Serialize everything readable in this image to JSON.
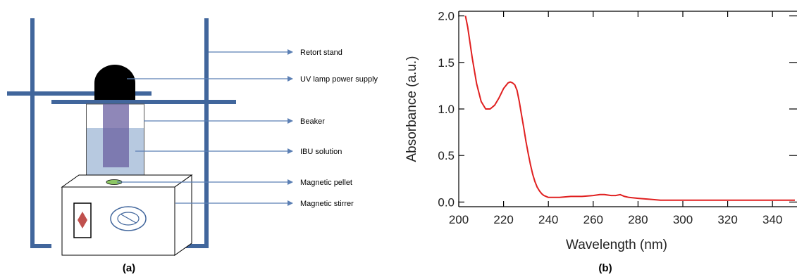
{
  "panel_a": {
    "caption": "(a)",
    "labels": {
      "retort_stand": "Retort stand",
      "uv_lamp": "UV lamp power supply",
      "beaker": "Beaker",
      "ibu_solution": "IBU solution",
      "magnetic_pellet": "Magnetic pellet",
      "magnetic_stirrer": "Magnetic stirrer"
    },
    "colors": {
      "stand": "#41669c",
      "lamp": "#000000",
      "solution": "#b7c9e0",
      "lamp_rod": "#6a5fa0",
      "arrow": "#5b7fb4",
      "pellet": "#8dc765",
      "knob": "#c0504d"
    }
  },
  "panel_b": {
    "caption": "(b)"
  },
  "chart_data": {
    "type": "line",
    "xlabel": "Wavelength (nm)",
    "ylabel": "Absorbance (a.u.)",
    "xlim": [
      200,
      350
    ],
    "ylim": [
      -0.05,
      2.05
    ],
    "xticks": [
      200,
      220,
      240,
      260,
      280,
      300,
      320,
      340
    ],
    "yticks": [
      0.0,
      0.5,
      1.0,
      1.5,
      2.0
    ],
    "xtick_labels": [
      "200",
      "220",
      "240",
      "260",
      "280",
      "300",
      "320",
      "340"
    ],
    "ytick_labels": [
      "0.0",
      "0.5",
      "1.0",
      "1.5",
      "2.0"
    ],
    "grid": false,
    "line_color": "#e02020",
    "series": [
      {
        "x": [
          203,
          204,
          206,
          208,
          210,
          212,
          214,
          216,
          218,
          220,
          222,
          223,
          224,
          225,
          226,
          227,
          228,
          229,
          230,
          231,
          232,
          233,
          234,
          235,
          236,
          237,
          238,
          239,
          240,
          242,
          245,
          250,
          255,
          260,
          263,
          265,
          268,
          270,
          272,
          274,
          276,
          280,
          285,
          290,
          300,
          310,
          320,
          330,
          340,
          350
        ],
        "y": [
          2.0,
          1.88,
          1.55,
          1.27,
          1.08,
          1.0,
          1.0,
          1.04,
          1.12,
          1.22,
          1.28,
          1.29,
          1.28,
          1.26,
          1.2,
          1.08,
          0.94,
          0.8,
          0.65,
          0.52,
          0.4,
          0.3,
          0.22,
          0.16,
          0.12,
          0.09,
          0.07,
          0.06,
          0.05,
          0.05,
          0.05,
          0.06,
          0.06,
          0.07,
          0.08,
          0.08,
          0.07,
          0.07,
          0.08,
          0.06,
          0.05,
          0.04,
          0.03,
          0.02,
          0.02,
          0.02,
          0.02,
          0.02,
          0.02,
          0.02
        ]
      }
    ]
  }
}
